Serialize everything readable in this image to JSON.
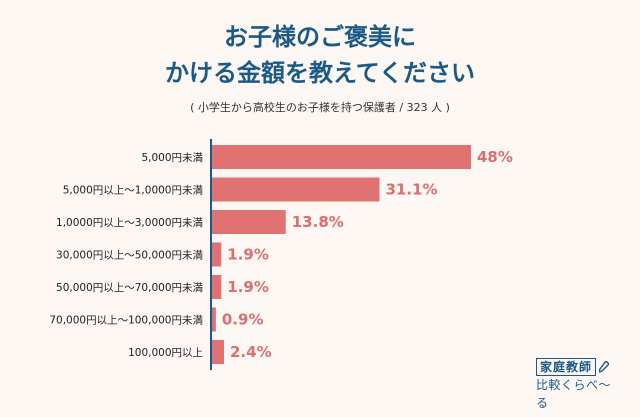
{
  "header": {
    "title_line1": "お子様のご褒美に",
    "title_line2": "かける金額を教えてください",
    "subtitle": "( 小学生から高校生のお子様を持つ保護者 / 323 人 )"
  },
  "chart_data": {
    "type": "bar",
    "orientation": "horizontal",
    "categories": [
      "5,000円未満",
      "5,000円以上〜1,0000円未満",
      "1,0000円以上〜3,0000円未満",
      "30,000円以上〜50,000円未満",
      "50,000円以上〜70,000円未満",
      "70,000円以上〜100,000円未満",
      "100,000円以上"
    ],
    "values": [
      48,
      31.1,
      13.8,
      1.9,
      1.9,
      0.9,
      2.4
    ],
    "value_labels": [
      "48%",
      "31.1%",
      "13.8%",
      "1.9%",
      "1.9%",
      "0.9%",
      "2.4%"
    ],
    "xlim": [
      0,
      48
    ],
    "grid": false,
    "bar_color": "#e07272",
    "label_color": "#d87070",
    "axis_color": "#1b5a86"
  },
  "logo": {
    "line1": "家庭教師",
    "line2": "比較くらべ〜る",
    "icon": "pencil-icon"
  }
}
